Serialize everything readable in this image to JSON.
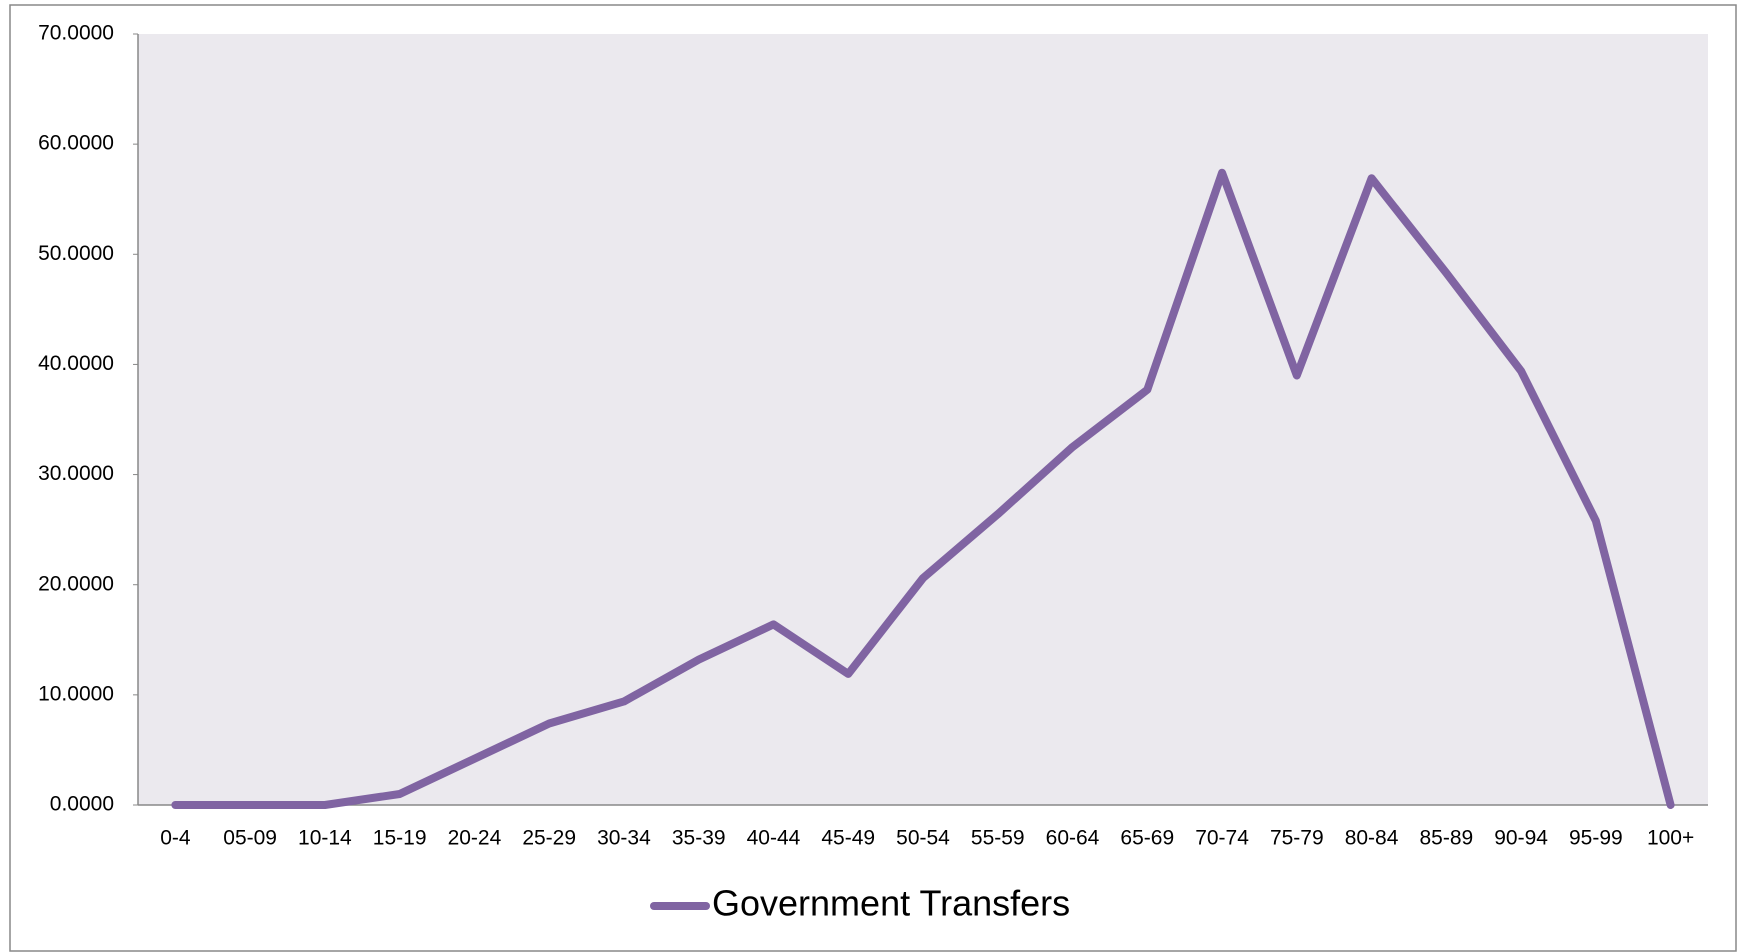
{
  "chart_data": {
    "type": "line",
    "categories": [
      "0-4",
      "05-09",
      "10-14",
      "15-19",
      "20-24",
      "25-29",
      "30-34",
      "35-39",
      "40-44",
      "45-49",
      "50-54",
      "55-59",
      "60-64",
      "65-69",
      "70-74",
      "75-79",
      "80-84",
      "85-89",
      "90-94",
      "95-99",
      "100+"
    ],
    "series": [
      {
        "name": "Government Transfers",
        "color": "#8064a2",
        "values": [
          0,
          0,
          0,
          1.0,
          4.2,
          7.4,
          9.4,
          13.2,
          16.4,
          11.9,
          20.6,
          26.4,
          32.5,
          37.7,
          57.4,
          39.0,
          56.9,
          48.3,
          39.4,
          25.8,
          0
        ]
      }
    ],
    "ylim": [
      0,
      70
    ],
    "yticks": [
      {
        "value": 0,
        "label": "0.0000"
      },
      {
        "value": 10,
        "label": "10.0000"
      },
      {
        "value": 20,
        "label": "20.0000"
      },
      {
        "value": 30,
        "label": "30.0000"
      },
      {
        "value": 40,
        "label": "40.0000"
      },
      {
        "value": 50,
        "label": "50.0000"
      },
      {
        "value": 60,
        "label": "60.0000"
      },
      {
        "value": 70,
        "label": "70.0000"
      }
    ],
    "grid": false,
    "legend": "bottom"
  }
}
